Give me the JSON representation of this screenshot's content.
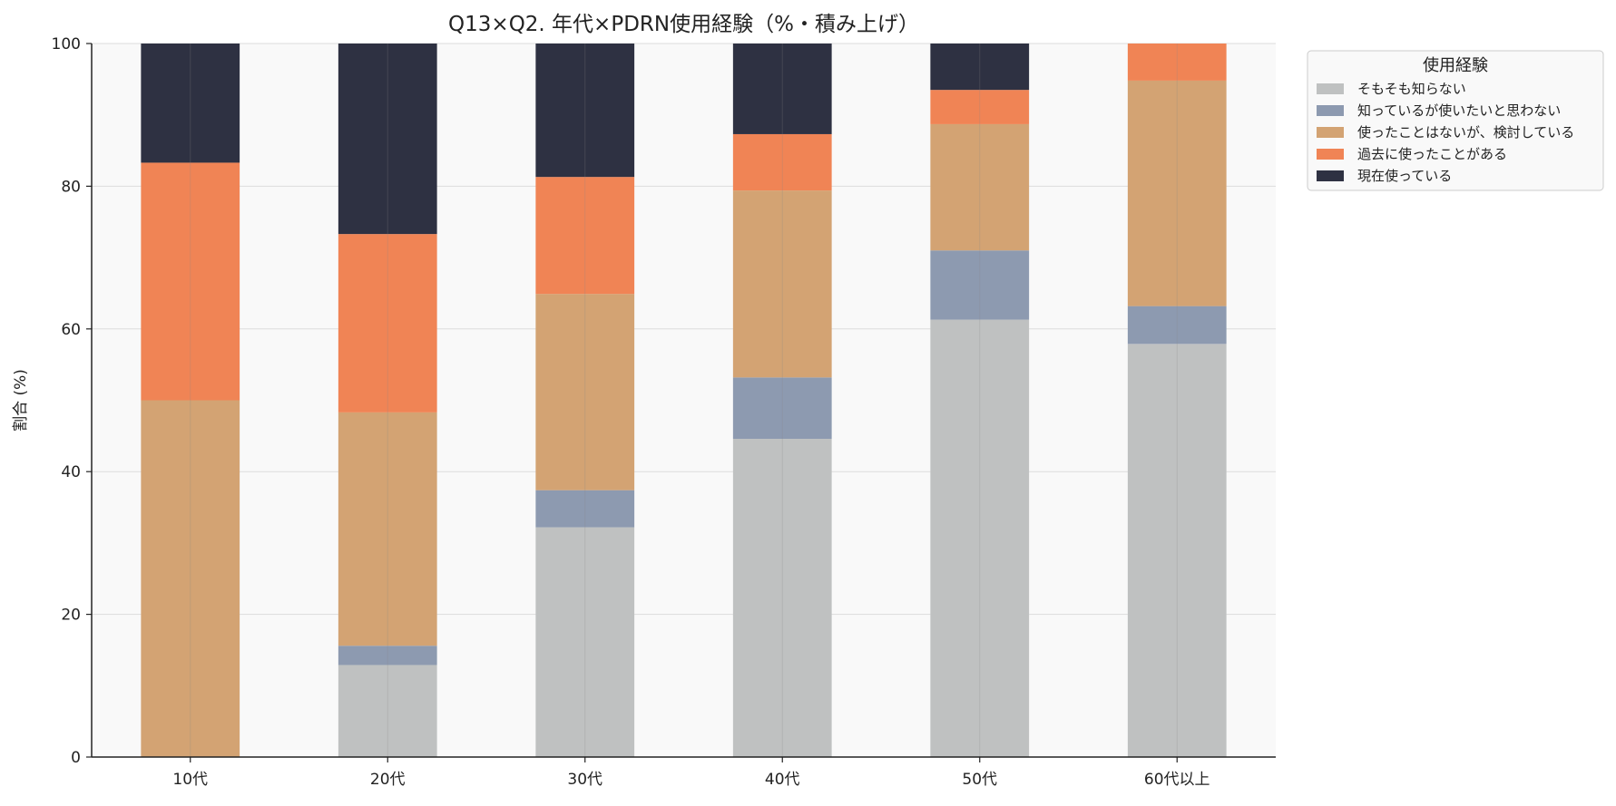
{
  "chart_data": {
    "type": "bar",
    "stacked": true,
    "title": "Q13×Q2. 年代×PDRN使用経験（%・積み上げ）",
    "xlabel": "",
    "ylabel": "割合 (%)",
    "ylim": [
      0,
      100
    ],
    "yticks": [
      0,
      20,
      40,
      60,
      80,
      100
    ],
    "grid": true,
    "legend": {
      "title": "使用経験",
      "placement": "outside-top-right"
    },
    "categories": [
      "10代",
      "20代",
      "30代",
      "40代",
      "50代",
      "60代以上"
    ],
    "series": [
      {
        "name": "そもそも知らない",
        "color": "#bfc1c1",
        "values": [
          0.0,
          12.9,
          32.2,
          44.6,
          61.3,
          57.9
        ]
      },
      {
        "name": "知っているが使いたいと思わない",
        "color": "#8d9ab0",
        "values": [
          0.0,
          2.7,
          5.2,
          8.6,
          9.7,
          5.3
        ]
      },
      {
        "name": "使ったことはないが、検討している",
        "color": "#d3a373",
        "values": [
          50.0,
          32.7,
          27.5,
          26.2,
          17.7,
          31.6
        ]
      },
      {
        "name": "過去に使ったことがある",
        "color": "#f08455",
        "values": [
          33.3,
          25.0,
          16.4,
          7.9,
          4.8,
          5.2
        ]
      },
      {
        "name": "現在使っている",
        "color": "#2e3142",
        "values": [
          16.7,
          26.7,
          18.7,
          12.7,
          6.5,
          0.0
        ]
      }
    ]
  }
}
